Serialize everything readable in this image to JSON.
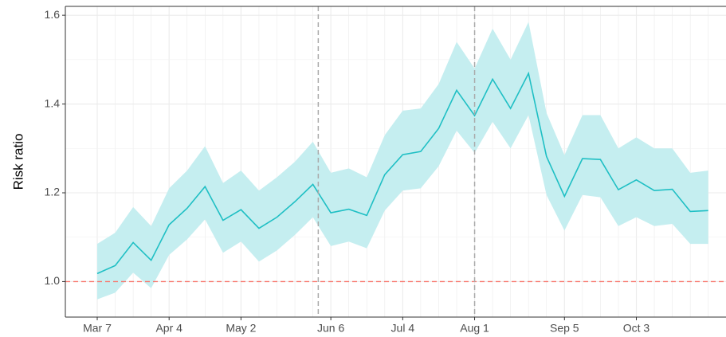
{
  "chart_data": {
    "type": "line",
    "y_label": "Risk ratio",
    "categories": [
      "Mar 7",
      null,
      null,
      null,
      "Apr 4",
      null,
      null,
      null,
      "May 2",
      null,
      null,
      null,
      null,
      "Jun 6",
      null,
      null,
      null,
      "Jul 4",
      null,
      null,
      null,
      "Aug 1",
      null,
      null,
      null,
      null,
      "Sep 5",
      null,
      null,
      null,
      "Oct 3",
      null,
      null,
      null,
      null
    ],
    "series": [
      {
        "color": "#1fbfc4",
        "band_color": "#c5eef0",
        "values": [
          1.018,
          1.036,
          1.088,
          1.048,
          1.128,
          1.165,
          1.214,
          1.138,
          1.162,
          1.12,
          1.145,
          1.18,
          1.219,
          1.155,
          1.163,
          1.149,
          1.241,
          1.286,
          1.293,
          1.345,
          1.431,
          1.374,
          1.456,
          1.39,
          1.469,
          1.282,
          1.192,
          1.277,
          1.275,
          1.207,
          1.229,
          1.205,
          1.208,
          1.158,
          1.16
        ],
        "upper": [
          1.085,
          1.11,
          1.168,
          1.125,
          1.21,
          1.25,
          1.305,
          1.222,
          1.25,
          1.205,
          1.235,
          1.27,
          1.315,
          1.245,
          1.255,
          1.235,
          1.33,
          1.385,
          1.39,
          1.445,
          1.54,
          1.48,
          1.57,
          1.5,
          1.585,
          1.38,
          1.285,
          1.375,
          1.375,
          1.3,
          1.325,
          1.3,
          1.3,
          1.245,
          1.25
        ],
        "lower": [
          0.96,
          0.975,
          1.02,
          0.985,
          1.06,
          1.095,
          1.14,
          1.065,
          1.09,
          1.045,
          1.07,
          1.105,
          1.145,
          1.08,
          1.09,
          1.075,
          1.16,
          1.205,
          1.21,
          1.26,
          1.34,
          1.29,
          1.36,
          1.3,
          1.375,
          1.195,
          1.115,
          1.195,
          1.19,
          1.125,
          1.145,
          1.125,
          1.13,
          1.085,
          1.085
        ]
      }
    ],
    "ylim": [
      0.92,
      1.62
    ],
    "yticks": [
      {
        "value": 1,
        "label": "1.0"
      },
      1.2,
      1.4,
      1.6
    ],
    "hline": 1,
    "hline_color": "#f8766d",
    "vlines": [
      12.3,
      21
    ],
    "grid": true
  }
}
